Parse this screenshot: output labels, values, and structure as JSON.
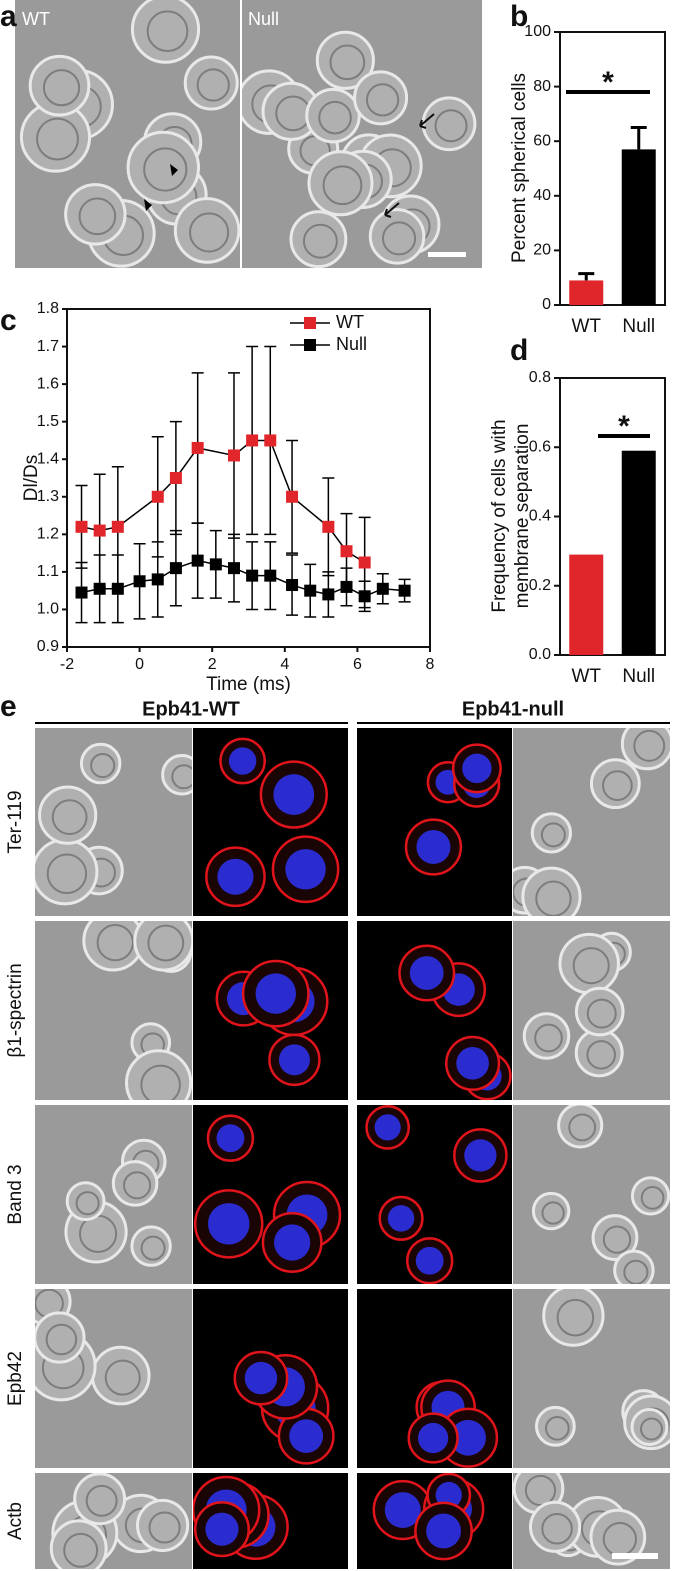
{
  "panel_labels": [
    "a",
    "b",
    "c",
    "d",
    "e"
  ],
  "panel_a": {
    "labels": [
      "WT",
      "Null"
    ]
  },
  "chart_data": [
    {
      "type": "bar",
      "y_label": "Percent spherical cells",
      "categories": [
        "WT",
        "Null"
      ],
      "values": [
        9,
        57
      ],
      "errors": [
        2.5,
        8
      ],
      "colors": [
        "#e0262b",
        "#000000"
      ],
      "ylim": [
        0,
        100
      ],
      "yticks": [
        0,
        20,
        40,
        60,
        80,
        100
      ],
      "annotation": "*"
    },
    {
      "type": "line",
      "y_label": "Dl/Ds",
      "x_label": "Time (ms)",
      "xlim": [
        -2,
        8
      ],
      "xticks": [
        -2,
        0,
        2,
        4,
        6,
        8
      ],
      "ylim": [
        0.9,
        1.8
      ],
      "yticks": [
        0.9,
        {
          "value": 1,
          "label": "1.0"
        },
        1.1,
        1.2,
        1.3,
        1.4,
        1.5,
        1.6,
        1.7,
        1.8
      ],
      "legend": "top-right",
      "series": [
        {
          "name": "WT",
          "color": "#e0262b",
          "x": [
            -1.6,
            -1.1,
            -0.6,
            0.5,
            1.0,
            1.6,
            2.6,
            3.1,
            3.6,
            4.2,
            5.2,
            5.7,
            6.2
          ],
          "values": [
            1.22,
            1.21,
            1.22,
            1.3,
            1.35,
            1.43,
            1.41,
            1.45,
            1.45,
            1.3,
            1.22,
            1.155,
            1.125
          ],
          "errors": [
            0.11,
            0.15,
            0.16,
            0.16,
            0.15,
            0.2,
            0.22,
            0.25,
            0.25,
            0.15,
            0.13,
            0.1,
            0.12
          ]
        },
        {
          "name": "Null",
          "color": "#000000",
          "x": [
            -1.6,
            -1.1,
            -0.6,
            0.0,
            0.5,
            1.0,
            1.6,
            2.1,
            2.6,
            3.1,
            3.6,
            4.2,
            4.7,
            5.2,
            5.7,
            6.2,
            6.7,
            7.3
          ],
          "values": [
            1.045,
            1.055,
            1.055,
            1.075,
            1.08,
            1.11,
            1.13,
            1.12,
            1.11,
            1.09,
            1.09,
            1.065,
            1.05,
            1.04,
            1.06,
            1.035,
            1.055,
            1.05
          ],
          "errors": [
            0.08,
            0.09,
            0.09,
            0.1,
            0.1,
            0.1,
            0.1,
            0.09,
            0.09,
            0.09,
            0.09,
            0.08,
            0.07,
            0.06,
            0.05,
            0.04,
            0.04,
            0.03
          ]
        }
      ]
    },
    {
      "type": "bar",
      "y_label": [
        "Frequency of cells with",
        "membrane separation"
      ],
      "categories": [
        "WT",
        "Null"
      ],
      "values": [
        0.29,
        0.59
      ],
      "colors": [
        "#e0262b",
        "#000000"
      ],
      "ylim": [
        0,
        0.8
      ],
      "yticks": [
        {
          "value": 0,
          "label": "0.0"
        },
        0.2,
        0.4,
        0.6,
        0.8
      ],
      "annotation": "*"
    }
  ],
  "panel_e": {
    "columns": [
      "Epb41-WT",
      "Epb41-null"
    ],
    "rows": [
      "Ter-119",
      "β1-spectrin",
      "Band 3",
      "Epb42",
      "Actb"
    ]
  }
}
